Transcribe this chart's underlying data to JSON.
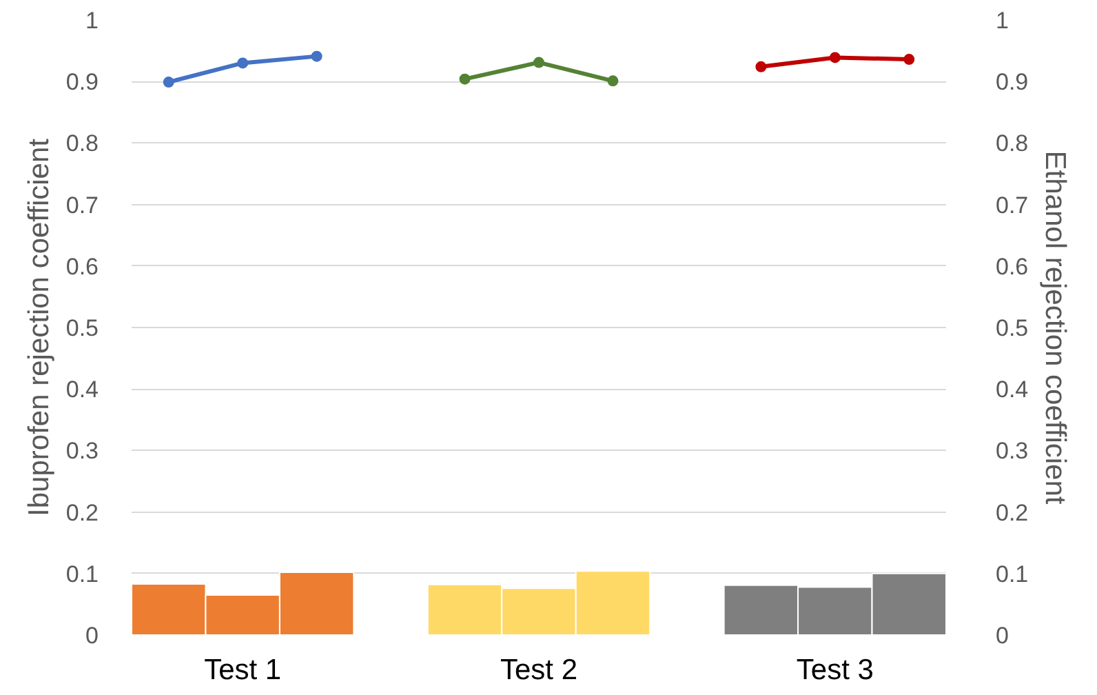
{
  "chart_data": {
    "type": "bar",
    "categories": [
      null,
      "Test 1",
      null,
      null,
      null,
      "Test 2",
      null,
      null,
      null,
      "Test 3",
      null
    ],
    "ylabel": "Ibuprofen rejection coefficient",
    "y2label": "Ethanol rejection coefficient",
    "ylim": [
      0,
      1
    ],
    "yticks": [
      0,
      0.1,
      0.2,
      0.3,
      0.4,
      0.5,
      0.6,
      0.7,
      0.8,
      0.9,
      1
    ],
    "y2lim": [
      0,
      1
    ],
    "y2ticks": [
      0,
      0.1,
      0.2,
      0.3,
      0.4,
      0.5,
      0.6,
      0.7,
      0.8,
      0.9,
      1
    ],
    "grid": "y",
    "marker": "circle",
    "series": [
      {
        "colors": [
          "#ed7d31",
          "#ed7d31",
          "#ed7d31",
          null,
          "#ffd966",
          "#ffd966",
          "#ffd966",
          null,
          "#7f7f7f",
          "#7f7f7f",
          "#7f7f7f"
        ],
        "values": [
          0.083,
          0.065,
          0.102,
          null,
          0.082,
          0.076,
          0.104,
          null,
          0.081,
          0.078,
          0.1
        ]
      },
      {
        "type": "line",
        "color": "#4472c4",
        "values": [
          0.899,
          0.93,
          0.941,
          null,
          null,
          null,
          null,
          null,
          null,
          null,
          null
        ]
      },
      {
        "type": "line",
        "color": "#548235",
        "values": [
          null,
          null,
          null,
          null,
          0.904,
          0.931,
          0.901,
          null,
          null,
          null,
          null
        ]
      },
      {
        "type": "line",
        "color": "#c00000",
        "values": [
          null,
          null,
          null,
          null,
          null,
          null,
          null,
          null,
          0.924,
          0.939,
          0.936
        ]
      }
    ]
  }
}
